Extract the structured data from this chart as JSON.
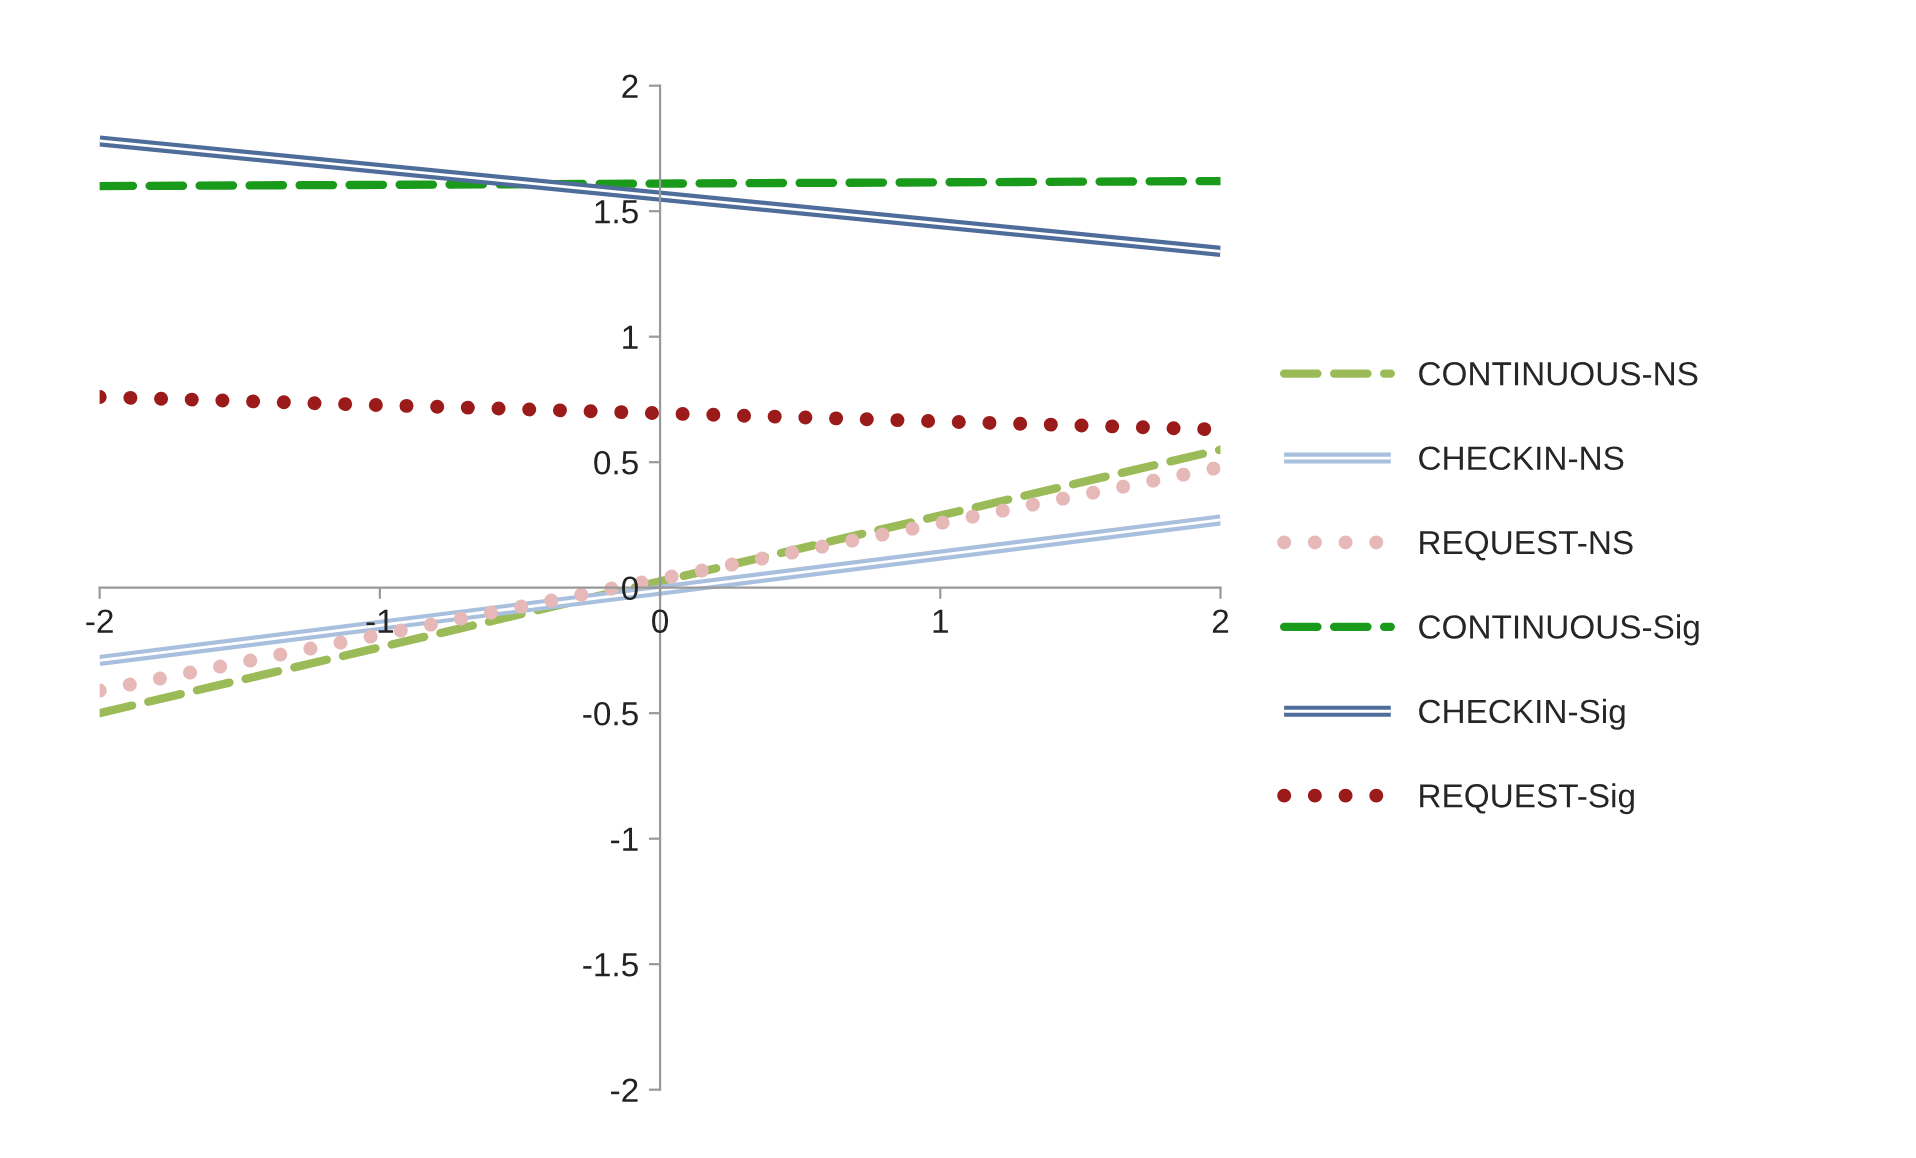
{
  "chart_data": {
    "type": "line",
    "x": [
      -2,
      2
    ],
    "xlim": [
      -2,
      2
    ],
    "ylim": [
      -2,
      2
    ],
    "xticks": [
      -2,
      -1,
      0,
      1,
      2
    ],
    "yticks": [
      -2,
      -1.5,
      -1,
      -0.5,
      0,
      0.5,
      1,
      1.5,
      2
    ],
    "grid": false,
    "legend": "right",
    "marker": "none",
    "series": [
      {
        "name": "CONTINUOUS-NS",
        "color": "#9bbb59",
        "line_style": "dashed",
        "values": [
          -0.5,
          0.55
        ]
      },
      {
        "name": "CHECKIN-NS",
        "color": "#a8c0de",
        "line_style": "solid",
        "values": [
          -0.29,
          0.27
        ]
      },
      {
        "name": "REQUEST-NS",
        "color": "#e6b9b8",
        "line_style": "dotted",
        "values": [
          -0.41,
          0.48
        ]
      },
      {
        "name": "CONTINUOUS-Sig",
        "color": "#1a9a1a",
        "line_style": "dashed",
        "values": [
          1.6,
          1.62
        ]
      },
      {
        "name": "CHECKIN-Sig",
        "color": "#4f6d9a",
        "line_style": "solid",
        "values": [
          1.78,
          1.34
        ]
      },
      {
        "name": "REQUEST-Sig",
        "color": "#9b1b1b",
        "line_style": "dotted",
        "values": [
          0.76,
          0.63
        ]
      }
    ]
  }
}
